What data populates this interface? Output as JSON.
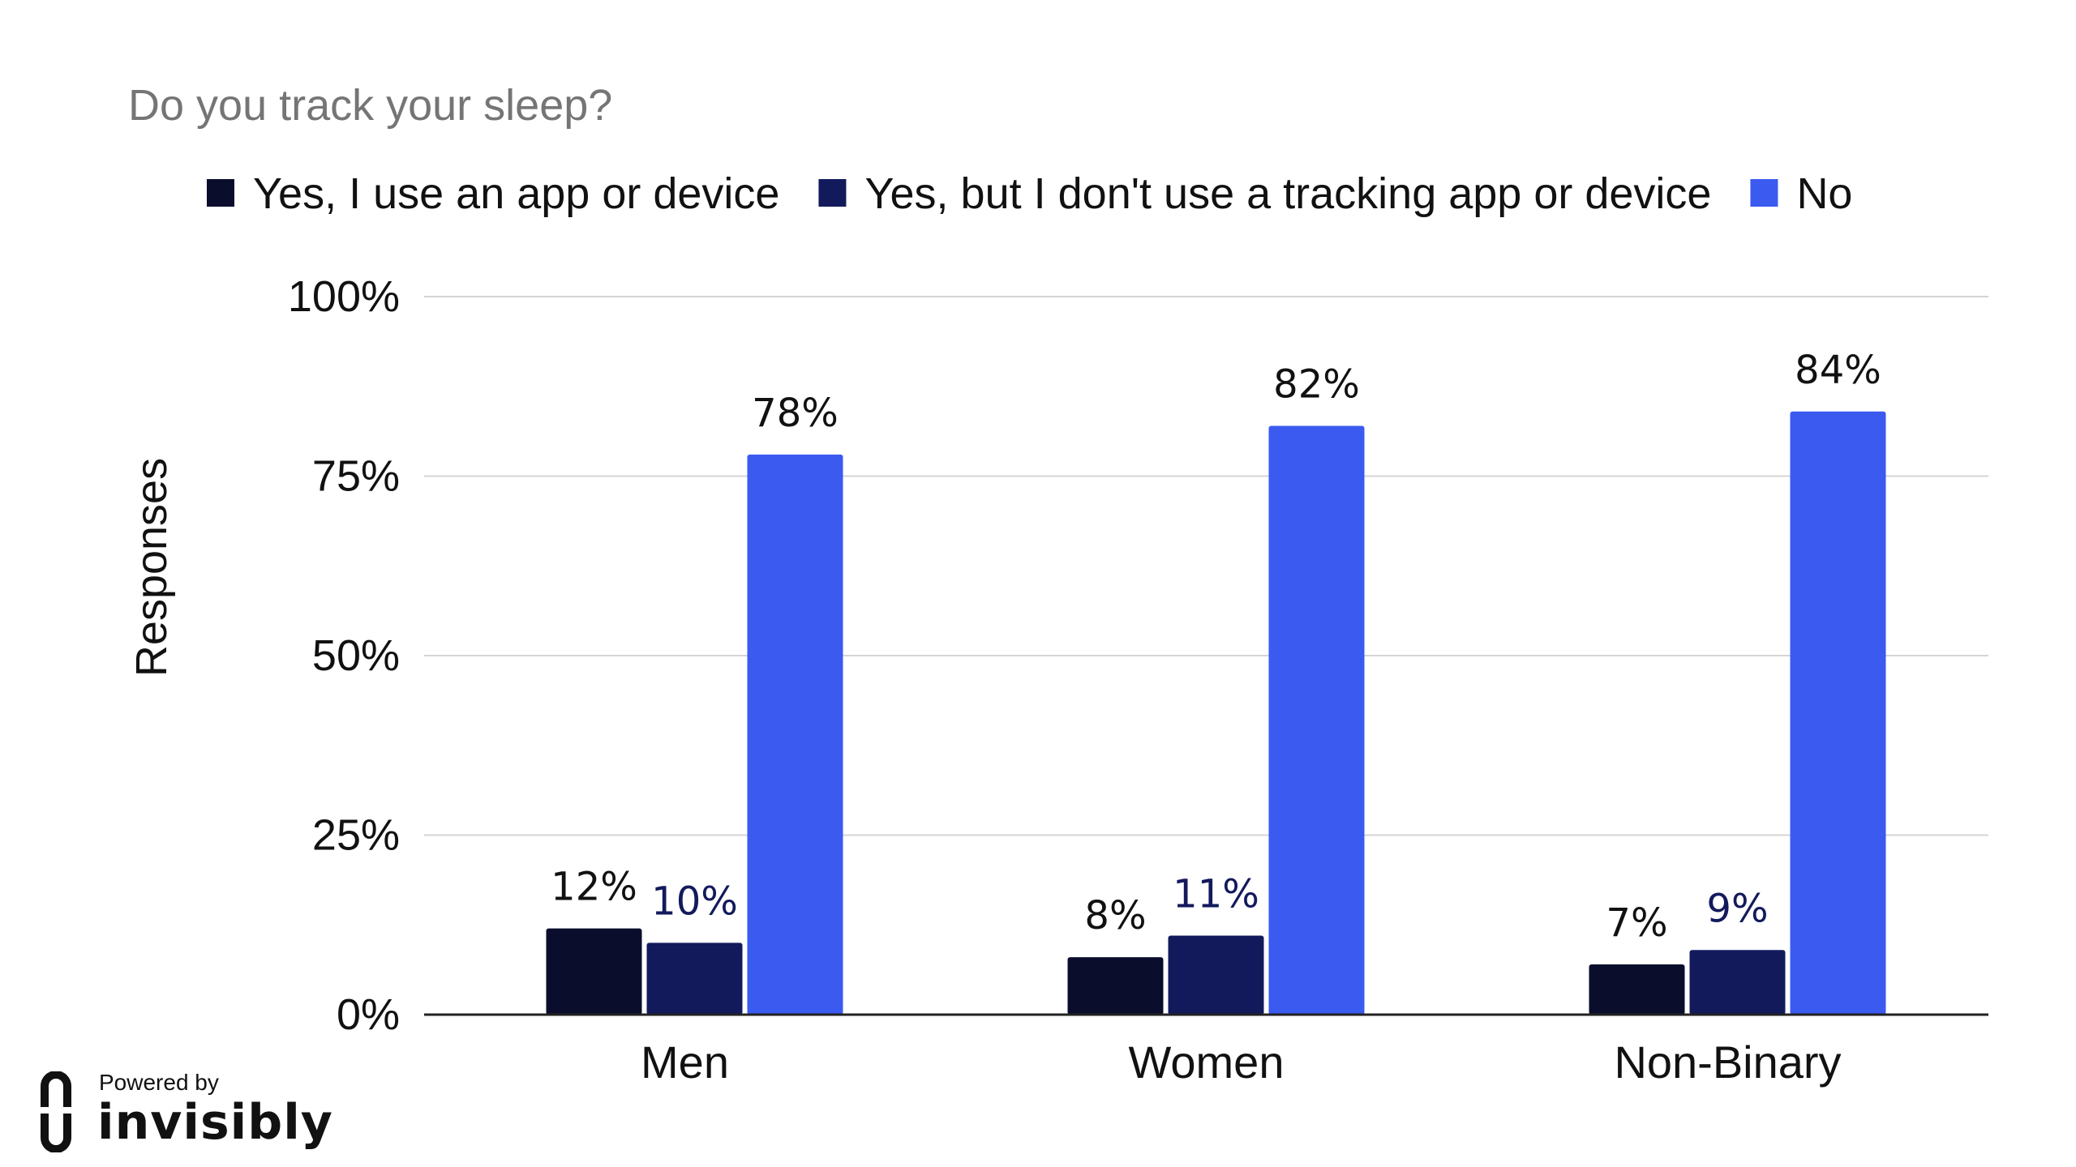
{
  "chart_data": {
    "type": "bar",
    "title": "Do you track your sleep?",
    "ylabel": "Responses",
    "xlabel": "",
    "categories": [
      "Men",
      "Women",
      "Non-Binary"
    ],
    "ylim": [
      0,
      100
    ],
    "yticks": [
      0,
      25,
      50,
      75,
      100
    ],
    "ytick_labels": [
      "0%",
      "25%",
      "50%",
      "75%",
      "100%"
    ],
    "grid": true,
    "legend_position": "top",
    "series": [
      {
        "name": "Yes, I use an app or device",
        "values": [
          12,
          8,
          7
        ],
        "labels": [
          "12%",
          "8%",
          "7%"
        ],
        "color": "#0a0e2c",
        "label_color": "#111111"
      },
      {
        "name": "Yes, but I don't use a tracking app or device",
        "values": [
          10,
          11,
          9
        ],
        "labels": [
          "10%",
          "11%",
          "9%"
        ],
        "color": "#131a5c",
        "label_color": "#131a5c"
      },
      {
        "name": "No",
        "values": [
          78,
          82,
          84
        ],
        "labels": [
          "78%",
          "82%",
          "84%"
        ],
        "color": "#3a5af0",
        "label_color": "#111111"
      }
    ]
  },
  "branding": {
    "powered_by": "Powered by",
    "name": "invisibly",
    "logo_icon": "invisibly-logo-icon"
  }
}
